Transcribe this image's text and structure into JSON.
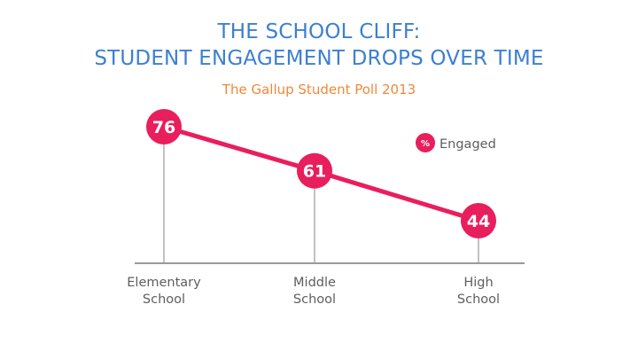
{
  "chart_data": {
    "type": "line",
    "title_lines": [
      "THE SCHOOL CLIFF:",
      "STUDENT ENGAGEMENT DROPS OVER TIME"
    ],
    "subtitle": "The Gallup Student Poll 2013",
    "categories": [
      [
        "Elementary",
        "School"
      ],
      [
        "Middle",
        "School"
      ],
      [
        "High",
        "School"
      ]
    ],
    "series": [
      {
        "name": "Engaged",
        "values": [
          76,
          61,
          44
        ],
        "color": "#e81e5d"
      }
    ],
    "legend": {
      "marker_text": "%",
      "label": "Engaged",
      "placement": "top-right"
    },
    "xlabel": "",
    "ylabel": "",
    "ylim": [
      44,
      76
    ],
    "grid": false,
    "colors": {
      "title": "#3d7fd1",
      "subtitle": "#f0883a",
      "axis": "#9a9a9a",
      "label": "#5e5e5e"
    }
  }
}
